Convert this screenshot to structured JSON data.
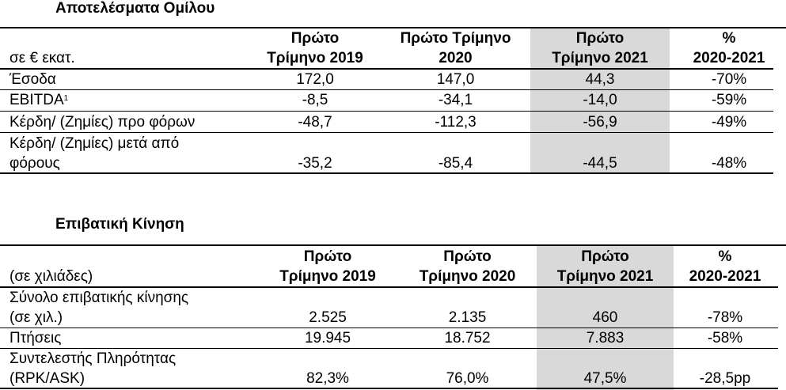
{
  "table1": {
    "title": "Αποτελέσματα Ομίλου",
    "unit_label": "σε € εκατ.",
    "columns": [
      [
        "Πρώτο",
        "Τρίμηνο 2019"
      ],
      [
        "Πρώτο Τρίμηνο",
        "2020"
      ],
      [
        "Πρώτο",
        "Τρίμηνο 2021"
      ],
      [
        "%",
        "2020-2021"
      ]
    ],
    "rows": [
      {
        "label": [
          "Έσοδα"
        ],
        "values": [
          "172,0",
          "147,0",
          "44,3",
          "-70%"
        ]
      },
      {
        "label": [
          "EBITDA"
        ],
        "footnote": "1",
        "values": [
          "-8,5",
          "-34,1",
          "-14,0",
          "-59%"
        ]
      },
      {
        "label": [
          "Κέρδη/ (Ζημίες) προ φόρων"
        ],
        "values": [
          "-48,7",
          "-112,3",
          "-56,9",
          "-49%"
        ]
      },
      {
        "label": [
          "Κέρδη/ (Ζημίες) μετά από",
          "φόρους"
        ],
        "values": [
          "-35,2",
          "-85,4",
          "-44,5",
          "-48%"
        ]
      }
    ]
  },
  "table2": {
    "title": "Επιβατική Κίνηση",
    "unit_label": "(σε χιλιάδες)",
    "columns": [
      [
        "Πρώτο",
        "Τρίμηνο 2019"
      ],
      [
        "Πρώτο",
        "Τρίμηνο 2020"
      ],
      [
        "Πρώτο",
        "Τρίμηνο 2021"
      ],
      [
        "%",
        "2020-2021"
      ]
    ],
    "rows": [
      {
        "label": [
          "Σύνολο επιβατικής κίνησης",
          "(σε χιλ.)"
        ],
        "values": [
          "2.525",
          "2.135",
          "460",
          "-78%"
        ]
      },
      {
        "label": [
          "Πτήσεις"
        ],
        "values": [
          "19.945",
          "18.752",
          "7.883",
          "-58%"
        ]
      },
      {
        "label": [
          "Συντελεστής Πληρότητας",
          "(RPK/ASK)"
        ],
        "values": [
          "82,3%",
          "76,0%",
          "47,5%",
          "-28,5pp"
        ]
      }
    ]
  },
  "colors": {
    "highlight_column": "#d9d9d9",
    "text": "#000000"
  }
}
